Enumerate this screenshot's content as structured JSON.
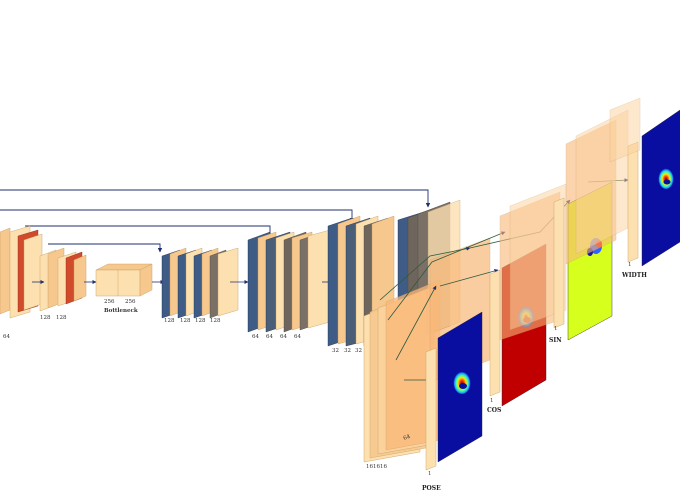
{
  "labels": {
    "enc1": [
      "64"
    ],
    "enc2": [
      "128",
      "128"
    ],
    "bottleneck_dims": [
      "256",
      "256"
    ],
    "bottleneck": "Bottleneck",
    "dec1": [
      "128",
      "128",
      "128",
      "128"
    ],
    "dec2": [
      "64",
      "64",
      "64",
      "64"
    ],
    "dec3": [
      "32",
      "32",
      "32",
      "32"
    ],
    "head_dims": [
      "16",
      "16",
      "16"
    ],
    "head_side": "64",
    "one": "1"
  },
  "outputs": {
    "pose": "POSE",
    "cos": "COS",
    "sin": "SIN",
    "width": "WIDTH"
  },
  "colors": {
    "block_face": "#fde0b0",
    "block_dark": "#f7c88e",
    "encoder_band": "#d24a2c",
    "decoder_band": "#3e5c86",
    "arrow": "#1f2f6e",
    "jet_blue": "#0a0ea0",
    "cos_red": "#c00000",
    "sin_yellow": "#d7ff1e"
  }
}
